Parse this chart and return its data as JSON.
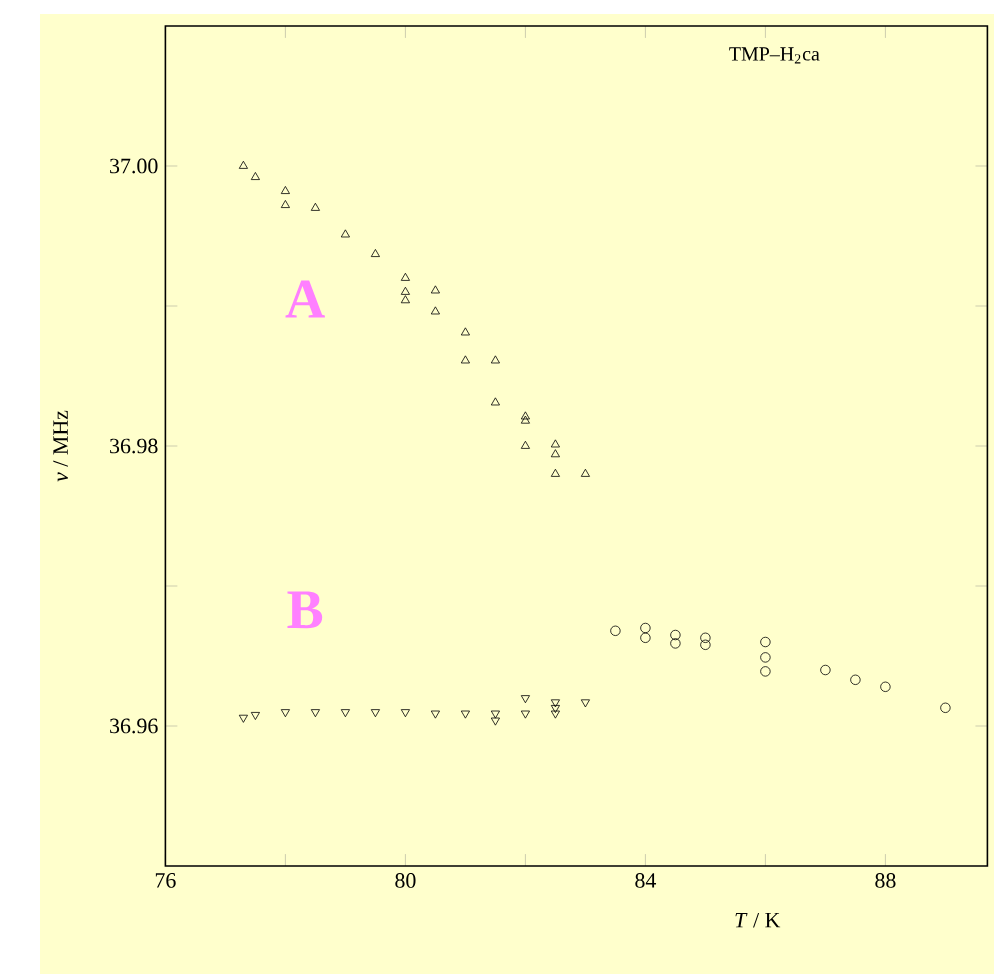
{
  "chart_data": {
    "type": "scatter",
    "xlabel": "*T* / K",
    "ylabel": "*ν* / MHz",
    "annotations": [
      "TMP–H$_{2}$ca",
      "A",
      "B"
    ],
    "xlim": [
      76,
      89.7
    ],
    "ylim": [
      36.95,
      37.01
    ],
    "xticks": [
      76,
      {
        "value": 78,
        "label": null
      },
      80,
      {
        "value": 82,
        "label": null
      },
      84,
      {
        "value": 86,
        "label": null
      },
      88
    ],
    "yticks": [
      36.96,
      {
        "value": 36.97,
        "label": null
      },
      36.98,
      {
        "value": 36.99,
        "label": null
      },
      {
        "value": 37.0,
        "label": "37.00"
      }
    ],
    "series": [
      {
        "color": "#000000",
        "marker": "triangle",
        "x": [
          77.3,
          77.5,
          78.0,
          78.0,
          78.5,
          79.0,
          79.5,
          80.0,
          80.0,
          80.0,
          80.5,
          80.5,
          81.0,
          81.0,
          81.5,
          81.5,
          82.0,
          82.0,
          82.0,
          82.5,
          82.5,
          82.5,
          83.0
        ],
        "values": [
          37.0,
          36.9992,
          36.9982,
          36.9972,
          36.997,
          36.9951,
          36.9937,
          36.992,
          36.991,
          36.9904,
          36.9911,
          36.9896,
          36.9881,
          36.9861,
          36.9861,
          36.9831,
          36.9821,
          36.9818,
          36.98,
          36.9801,
          36.9794,
          36.978,
          36.978
        ]
      },
      {
        "color": "#000000",
        "marker": "triangle down",
        "x": [
          77.3,
          77.5,
          78.0,
          78.5,
          79.0,
          79.5,
          80.0,
          80.5,
          81.0,
          81.5,
          81.5,
          82.0,
          82.0,
          82.5,
          82.5,
          82.5,
          83.0
        ],
        "values": [
          36.9606,
          36.9608,
          36.961,
          36.961,
          36.961,
          36.961,
          36.961,
          36.9609,
          36.9609,
          36.9609,
          36.9604,
          36.9609,
          36.962,
          36.9617,
          36.9613,
          36.9609,
          36.9617
        ]
      },
      {
        "color": "#000000",
        "marker": "circle",
        "x": [
          83.5,
          84.0,
          84.0,
          84.5,
          84.5,
          85.0,
          85.0,
          86.0,
          86.0,
          86.0,
          87.0,
          87.5,
          88.0,
          89.0
        ],
        "values": [
          36.9668,
          36.967,
          36.9663,
          36.9665,
          36.9659,
          36.9663,
          36.9658,
          36.966,
          36.9649,
          36.9639,
          36.964,
          36.9633,
          36.9628,
          36.9613
        ]
      }
    ]
  }
}
